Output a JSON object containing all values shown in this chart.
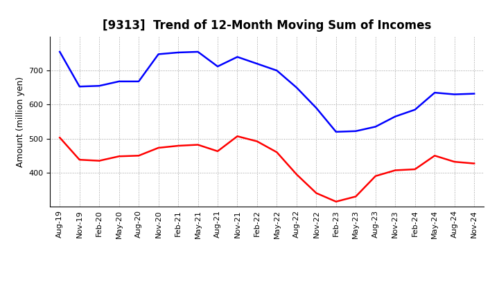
{
  "title": "[9313]  Trend of 12-Month Moving Sum of Incomes",
  "ylabel": "Amount (million yen)",
  "x_labels": [
    "Aug-19",
    "Nov-19",
    "Feb-20",
    "May-20",
    "Aug-20",
    "Nov-20",
    "Feb-21",
    "May-21",
    "Aug-21",
    "Nov-21",
    "Feb-22",
    "May-22",
    "Aug-22",
    "Nov-22",
    "Feb-23",
    "May-23",
    "Aug-23",
    "Nov-23",
    "Feb-24",
    "May-24",
    "Aug-24",
    "Nov-24"
  ],
  "ordinary_income": [
    755,
    653,
    655,
    668,
    668,
    748,
    753,
    755,
    712,
    740,
    720,
    700,
    650,
    590,
    520,
    522,
    535,
    565,
    585,
    635,
    630,
    632
  ],
  "net_income": [
    503,
    438,
    435,
    448,
    450,
    473,
    479,
    482,
    463,
    507,
    492,
    460,
    395,
    340,
    315,
    330,
    390,
    407,
    410,
    450,
    432,
    427
  ],
  "ordinary_color": "#0000ff",
  "net_color": "#ff0000",
  "ylim_min": 300,
  "ylim_max": 800,
  "yticks": [
    400,
    500,
    600,
    700
  ],
  "background_color": "#ffffff",
  "grid_color": "#999999",
  "title_fontsize": 12,
  "axis_label_fontsize": 9,
  "tick_fontsize": 8,
  "legend_fontsize": 9,
  "line_width": 1.8
}
